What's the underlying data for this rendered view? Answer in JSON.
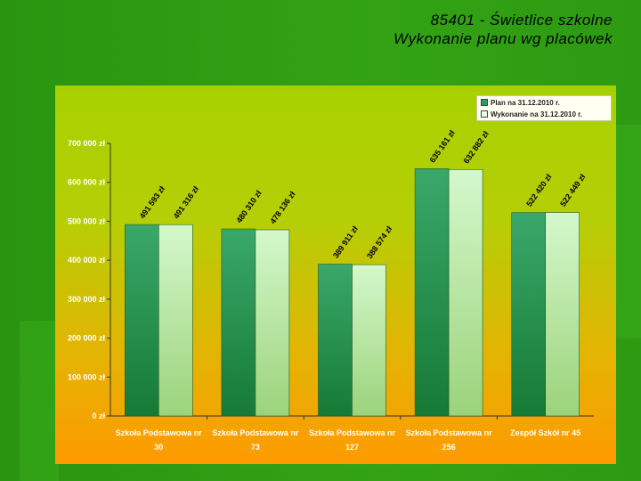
{
  "slide": {
    "title_line1": "85401 - Świetlice szkolne",
    "title_line2": "Wykonanie planu wg placówek"
  },
  "colors": {
    "plan": "#2e9e5e",
    "wykonanie": "#c8f5c0",
    "axis_text": "#ffffff",
    "value_label": "#000000"
  },
  "chart_data": {
    "type": "bar",
    "title": "",
    "xlabel": "",
    "ylabel": "",
    "ylim": [
      0,
      700000
    ],
    "yticks": [
      {
        "value": 0,
        "label": "0 zł"
      },
      {
        "value": 100000,
        "label": "100 000 zł"
      },
      {
        "value": 200000,
        "label": "200 000 zł"
      },
      {
        "value": 300000,
        "label": "300 000 zł"
      },
      {
        "value": 400000,
        "label": "400 000 zł"
      },
      {
        "value": 500000,
        "label": "500 000 zł"
      },
      {
        "value": 600000,
        "label": "600 000 zł"
      },
      {
        "value": 700000,
        "label": "700 000 zł"
      }
    ],
    "categories": [
      [
        "Szkoła Podstawowa nr",
        "30"
      ],
      [
        "Szkoła Podstawowa nr",
        "73"
      ],
      [
        "Szkoła Podstawowa nr",
        "127"
      ],
      [
        "Szkoła Podstawowa nr",
        "256"
      ],
      [
        "Zespół Szkół nr 45",
        ""
      ]
    ],
    "legend_position": "top-right",
    "series": [
      {
        "name": "Plan na 31.12.2010 r.",
        "values": [
          491593,
          480310,
          389911,
          635161,
          522420
        ],
        "labels": [
          "491 593 zł",
          "480 310 zł",
          "389 911 zł",
          "635 161 zł",
          "522 420 zł"
        ]
      },
      {
        "name": "Wykonanie na 31.12.2010 r.",
        "values": [
          491316,
          478136,
          388574,
          632882,
          522449
        ],
        "labels": [
          "491 316 zł",
          "478 136 zł",
          "388 574 zł",
          "632 882 zł",
          "522 449 zł"
        ]
      }
    ]
  }
}
